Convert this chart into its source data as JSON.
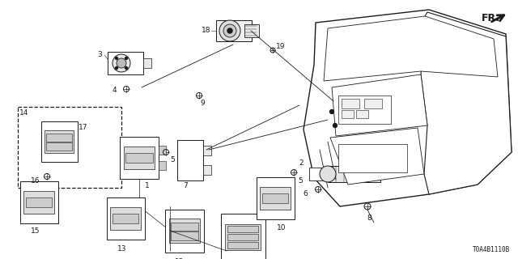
{
  "bg_color": "#ffffff",
  "line_color": "#1a1a1a",
  "diagram_code": "T0A4B1110B",
  "fr_text": "FR.",
  "label_fontsize": 6.0,
  "code_fontsize": 5.5
}
